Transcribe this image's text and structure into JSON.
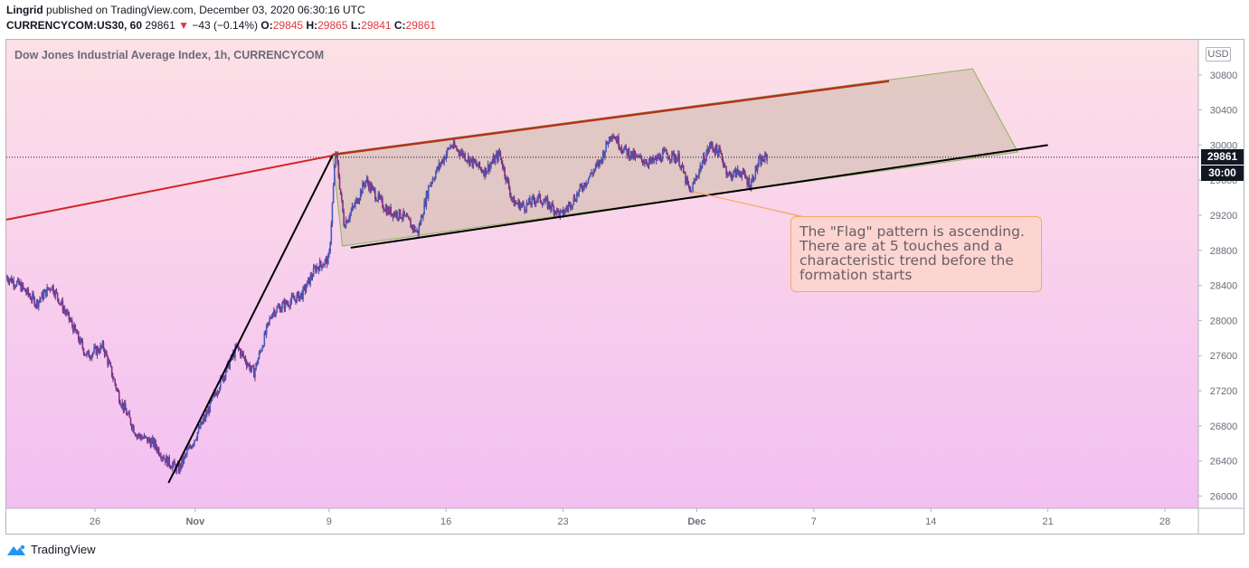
{
  "header": {
    "author": "Lingrid",
    "published_text": "published on TradingView.com, December 03, 2020 06:30:16 UTC",
    "symbol": "CURRENCYCOM:US30, 60",
    "last": "29861",
    "change_arrow": "▼",
    "change": "−43 (−0.14%)",
    "o_label": "O:",
    "o_val": "29845",
    "h_label": "H:",
    "h_val": "29865",
    "l_label": "L:",
    "l_val": "29841",
    "c_label": "C:",
    "c_val": "29861"
  },
  "chart_title": "Dow Jones Industrial Average Index, 1h, CURRENCYCOM",
  "currency": "USD",
  "price_tag": "29861",
  "countdown_tag": "30:00",
  "callout_text": "The \"Flag\" pattern is ascending. There are at 5 touches and a characteristic trend before the formation starts",
  "footer_brand": "TradingView",
  "colors": {
    "bg_top": "#fde0e6",
    "bg_bottom": "#f3bff2",
    "candle": "#5c3a8f",
    "flag_fill": "#d8c2b8",
    "flag_border": "#8db35a",
    "red_line": "#d32222",
    "black_line": "#000000",
    "callout_border": "#f5a962",
    "callout_bg": "#fcd5d1"
  },
  "chart_data": {
    "type": "line",
    "title": "Dow Jones Industrial Average Index, 1h, CURRENCYCOM",
    "ylabel": "USD",
    "ylim": [
      25860,
      31200
    ],
    "y_ticks": [
      26000,
      26400,
      26800,
      27200,
      27600,
      28000,
      28400,
      28800,
      29200,
      29600,
      30000,
      30400,
      30800
    ],
    "x_tick_labels": [
      "26",
      "Nov",
      "9",
      "16",
      "23",
      "Dec",
      "7",
      "14",
      "21",
      "28"
    ],
    "x_tick_days": [
      -5,
      1,
      9,
      16,
      23,
      31,
      38,
      45,
      52,
      59
    ],
    "x_domain_days": [
      -10.3,
      61
    ],
    "series": [
      {
        "name": "US30 1h close (approx.)",
        "x_days": [
          -10.3,
          -9.5,
          -8.5,
          -7.6,
          -6.5,
          -5.5,
          -4.5,
          -3.5,
          -2.5,
          -1.5,
          -0.7,
          0.0,
          0.8,
          1.6,
          2.5,
          3.5,
          4.5,
          5.6,
          6.5,
          7.4,
          8.2,
          9.0,
          9.4,
          9.9,
          10.5,
          11.2,
          11.9,
          12.5,
          13.4,
          14.3,
          15.0,
          15.7,
          16.3,
          17.0,
          17.6,
          18.3,
          19.2,
          20.0,
          20.7,
          21.5,
          22.3,
          22.9,
          23.7,
          24.4,
          25.2,
          25.9,
          26.6,
          27.4,
          28.3,
          29.1,
          29.9,
          30.6,
          31.1,
          31.8,
          32.4,
          32.9,
          33.6,
          34.2,
          34.7,
          35.2
        ],
        "values": [
          28500,
          28400,
          28200,
          28400,
          28000,
          27600,
          27700,
          27100,
          26700,
          26600,
          26400,
          26300,
          26600,
          26900,
          27300,
          27700,
          27400,
          28100,
          28200,
          28300,
          28600,
          28700,
          29950,
          29100,
          29300,
          29600,
          29400,
          29250,
          29200,
          29000,
          29550,
          29800,
          30000,
          29900,
          29800,
          29700,
          29900,
          29350,
          29300,
          29400,
          29300,
          29200,
          29400,
          29600,
          29800,
          30150,
          29950,
          29850,
          29800,
          29900,
          29850,
          29450,
          29700,
          30000,
          29900,
          29650,
          29700,
          29550,
          29800,
          29861
        ]
      }
    ],
    "annotations": {
      "last_price": 29861,
      "callout": "The \"Flag\" pattern is ascending. There are at 5 touches and a characteristic trend before the formation starts"
    }
  }
}
